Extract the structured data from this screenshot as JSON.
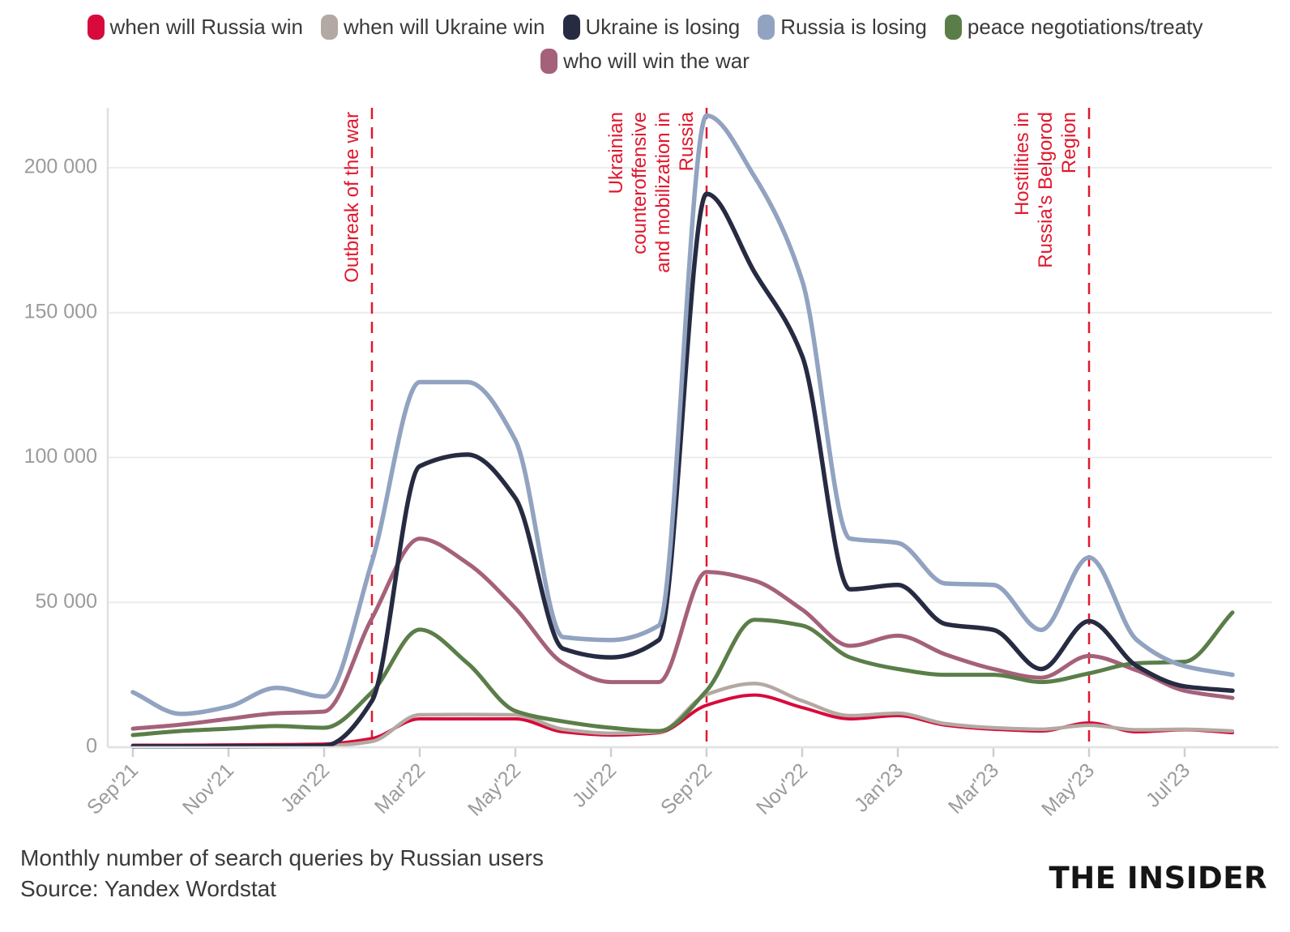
{
  "chart_data": {
    "type": "line",
    "title": "Monthly number of search queries by Russian users",
    "x": [
      "Sep'21",
      "Oct'21",
      "Nov'21",
      "Dec'21",
      "Jan'22",
      "Feb'22",
      "Mar'22",
      "Apr'22",
      "May'22",
      "Jun'22",
      "Jul'22",
      "Aug'22",
      "Sep'22",
      "Oct'22",
      "Nov'22",
      "Dec'22",
      "Jan'23",
      "Feb'23",
      "Mar'23",
      "Apr'23",
      "May'23",
      "Jun'23",
      "Jul'23",
      "Aug'23"
    ],
    "x_labeled_indices": [
      0,
      2,
      4,
      6,
      8,
      10,
      12,
      14,
      16,
      18,
      20,
      22
    ],
    "ylim": [
      0,
      220000
    ],
    "grid": true,
    "legend_position": "top",
    "y_ticks": [
      {
        "value": 0,
        "label": "0"
      },
      {
        "value": 50000,
        "label": "50 000"
      },
      {
        "value": 100000,
        "label": "100 000"
      },
      {
        "value": 150000,
        "label": "150 000"
      },
      {
        "value": 200000,
        "label": "200 000"
      }
    ],
    "series": [
      {
        "name": "when will Russia win",
        "color": "#d80a3c",
        "values": [
          700,
          700,
          800,
          900,
          1100,
          3000,
          9800,
          9800,
          9800,
          5300,
          4200,
          5000,
          14500,
          18000,
          13700,
          9800,
          10900,
          7600,
          6200,
          5600,
          8400,
          5300,
          6000,
          5000
        ]
      },
      {
        "name": "when will Ukraine win",
        "color": "#b3a9a2",
        "values": [
          200,
          200,
          250,
          300,
          450,
          2000,
          11200,
          11300,
          11200,
          6200,
          4800,
          5300,
          18200,
          22000,
          16000,
          10900,
          11700,
          8100,
          6700,
          6200,
          7600,
          6000,
          6200,
          5600
        ]
      },
      {
        "name": "Ukraine is losing",
        "color": "#262b42",
        "values": [
          300,
          300,
          300,
          400,
          500,
          16000,
          97000,
          101000,
          86000,
          34000,
          31000,
          37000,
          191000,
          164000,
          135000,
          54500,
          56000,
          42500,
          40500,
          27000,
          43500,
          28000,
          21000,
          19500
        ]
      },
      {
        "name": "Russia is losing",
        "color": "#91a3c0",
        "values": [
          19000,
          11500,
          14000,
          20500,
          17500,
          64000,
          126000,
          126000,
          106000,
          38000,
          37000,
          42000,
          218000,
          197000,
          161000,
          72000,
          70500,
          56500,
          56000,
          40500,
          65500,
          37000,
          28000,
          25000
        ]
      },
      {
        "name": "peace negotiations/treaty",
        "color": "#5b7e49",
        "values": [
          4200,
          5600,
          6400,
          7300,
          6700,
          19000,
          40600,
          29000,
          12500,
          8900,
          6700,
          5600,
          19500,
          44000,
          42000,
          31000,
          27000,
          25000,
          25000,
          22500,
          25500,
          29000,
          29500,
          46500
        ]
      },
      {
        "name": "who will win the war",
        "color": "#a5617a",
        "values": [
          6400,
          7800,
          9800,
          11700,
          12300,
          44500,
          72000,
          63500,
          48000,
          29000,
          22500,
          22500,
          60500,
          57500,
          47500,
          35000,
          38500,
          32000,
          27000,
          24000,
          31500,
          26500,
          19500,
          17000
        ]
      }
    ],
    "annotations": [
      {
        "month": "Feb'22",
        "month_index": 5,
        "color": "#e0182e",
        "lines": [
          "Outbreak of the war"
        ]
      },
      {
        "month": "Sep'22",
        "month_index": 12,
        "color": "#e0182e",
        "lines": [
          "Ukrainian",
          "counteroffensive",
          "and mobilization in",
          "Russia"
        ]
      },
      {
        "month": "May'23",
        "month_index": 20,
        "color": "#e0182e",
        "lines": [
          "Hostilities in",
          "Russia's Belgorod",
          "Region"
        ]
      }
    ]
  },
  "legend": {
    "rows": [
      [
        0,
        1,
        2,
        3,
        4
      ],
      [
        5
      ]
    ]
  },
  "footer": {
    "line1": "Monthly number of search queries by Russian users",
    "line2": "Source: Yandex Wordstat"
  },
  "logo": "THE INSIDER"
}
